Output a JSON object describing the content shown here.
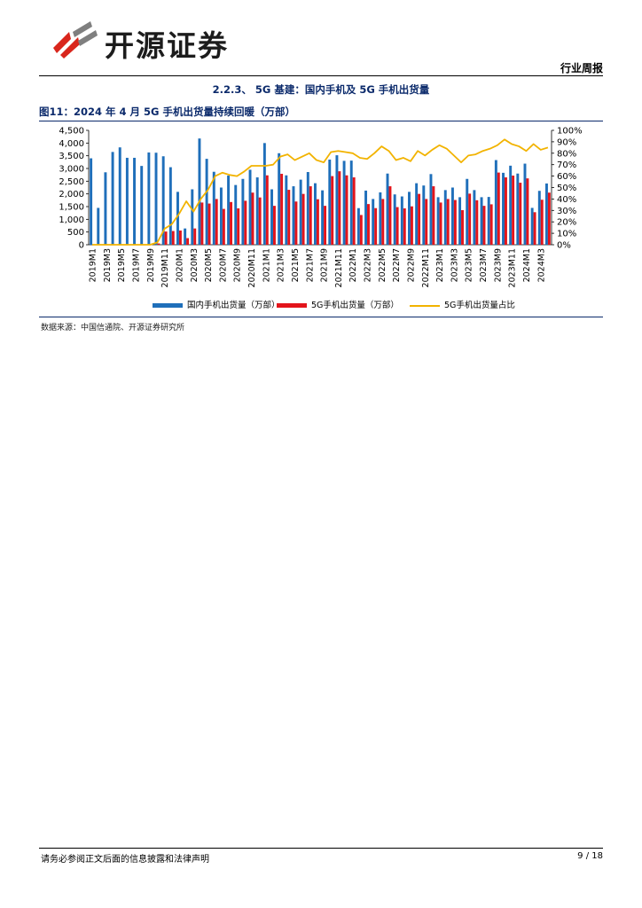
{
  "header": {
    "company_name": "开源证券",
    "report_type": "行业周报",
    "brand_color_red": "#d9261c",
    "brand_color_gray": "#7f7f7f"
  },
  "section": {
    "title": "2.2.3、 5G 基建：国内手机及 5G 手机出货量"
  },
  "figure": {
    "title": "图11：2024 年 4 月 5G 手机出货量持续回暖（万部）",
    "source": "数据来源：中国信通院、开源证券研究所"
  },
  "footer": {
    "disclaimer": "请务必参阅正文后面的信息披露和法律声明",
    "page": "9 / 18"
  },
  "chart_data": {
    "type": "bar",
    "title": "图11：2024 年 4 月 5G 手机出货量持续回暖（万部）",
    "categories": [
      "2019M1",
      "2019M2",
      "2019M3",
      "2019M4",
      "2019M5",
      "2019M6",
      "2019M7",
      "2019M8",
      "2019M9",
      "2019M10",
      "2019M11",
      "2019M12",
      "2020M1",
      "2020M2",
      "2020M3",
      "2020M4",
      "2020M5",
      "2020M6",
      "2020M7",
      "2020M8",
      "2020M9",
      "2020M10",
      "2020M11",
      "2020M12",
      "2021M1",
      "2021M2",
      "2021M3",
      "2021M4",
      "2021M5",
      "2021M6",
      "2021M7",
      "2021M8",
      "2021M9",
      "2021M10",
      "2021M11",
      "2021M12",
      "2022M1",
      "2022M2",
      "2022M3",
      "2022M4",
      "2022M5",
      "2022M6",
      "2022M7",
      "2022M8",
      "2022M9",
      "2022M10",
      "2022M11",
      "2022M12",
      "2023M1",
      "2023M2",
      "2023M3",
      "2023M4",
      "2023M5",
      "2023M6",
      "2023M7",
      "2023M8",
      "2023M9",
      "2023M10",
      "2023M11",
      "2023M12",
      "2024M1",
      "2024M2",
      "2024M3",
      "2024M4"
    ],
    "x_tick_labels": [
      "2019M1",
      "2019M3",
      "2019M5",
      "2019M7",
      "2019M9",
      "2019M11",
      "2020M1",
      "2020M3",
      "2020M5",
      "2020M7",
      "2020M9",
      "2020M11",
      "2021M1",
      "2021M3",
      "2021M5",
      "2021M7",
      "2021M9",
      "2021M11",
      "2022M1",
      "2022M3",
      "2022M5",
      "2022M7",
      "2022M9",
      "2022M11",
      "2023M1",
      "2023M3",
      "2023M5",
      "2023M7",
      "2023M9",
      "2023M11",
      "2024M1",
      "2024M3"
    ],
    "series": [
      {
        "name": "国内手机出货量（万部）",
        "color": "#1f6fba",
        "axis": "left",
        "values": [
          3400,
          1450,
          2850,
          3650,
          3830,
          3420,
          3420,
          3100,
          3630,
          3620,
          3480,
          3050,
          2080,
          640,
          2180,
          4180,
          3380,
          2870,
          2250,
          2720,
          2350,
          2590,
          2950,
          2650,
          4000,
          2180,
          3600,
          2730,
          2300,
          2560,
          2860,
          2420,
          2140,
          3350,
          3520,
          3300,
          3310,
          1440,
          2130,
          1800,
          2060,
          2800,
          1980,
          1900,
          2080,
          2420,
          2330,
          2780,
          1870,
          2150,
          2250,
          1870,
          2590,
          2150,
          1870,
          1880,
          3330,
          2830,
          3110,
          2800,
          3190,
          1450,
          2120,
          2410
        ]
      },
      {
        "name": "5G手机出货量（万部）",
        "color": "#e3141b",
        "axis": "left",
        "values": [
          0,
          0,
          0,
          0,
          0,
          0,
          0,
          0,
          0,
          50,
          520,
          540,
          560,
          260,
          640,
          1660,
          1620,
          1800,
          1410,
          1680,
          1430,
          1730,
          2050,
          1860,
          2730,
          1530,
          2790,
          2160,
          1700,
          2000,
          2300,
          1790,
          1530,
          2700,
          2890,
          2730,
          2650,
          1170,
          1600,
          1440,
          1800,
          2300,
          1480,
          1430,
          1510,
          2000,
          1800,
          2300,
          1660,
          1800,
          1760,
          1360,
          2010,
          1750,
          1530,
          1590,
          2840,
          2650,
          2720,
          2440,
          2610,
          1280,
          1770,
          2050
        ]
      },
      {
        "name": "5G手机出货量占比",
        "color": "#f2b300",
        "axis": "right",
        "unit": "%",
        "values": [
          0,
          0,
          0,
          0,
          0,
          0,
          0,
          0,
          0,
          2,
          14,
          18,
          27,
          38,
          29,
          40,
          48,
          60,
          63,
          61,
          60,
          64,
          69,
          69,
          69,
          70,
          77,
          79,
          74,
          77,
          80,
          74,
          72,
          81,
          82,
          81,
          80,
          76,
          75,
          80,
          86,
          82,
          74,
          76,
          73,
          82,
          78,
          83,
          87,
          84,
          78,
          72,
          78,
          79,
          82,
          84,
          87,
          92,
          88,
          86,
          82,
          88,
          83,
          85
        ]
      }
    ],
    "y_left": {
      "min": 0,
      "max": 4500,
      "step": 500,
      "tick_labels": [
        "0",
        "500",
        "1,000",
        "1,500",
        "2,000",
        "2,500",
        "3,000",
        "3,500",
        "4,000",
        "4,500"
      ]
    },
    "y_right": {
      "min": 0,
      "max": 100,
      "step": 10,
      "tick_labels": [
        "0%",
        "10%",
        "20%",
        "30%",
        "40%",
        "50%",
        "60%",
        "70%",
        "80%",
        "90%",
        "100%"
      ]
    },
    "legend_position": "bottom"
  }
}
